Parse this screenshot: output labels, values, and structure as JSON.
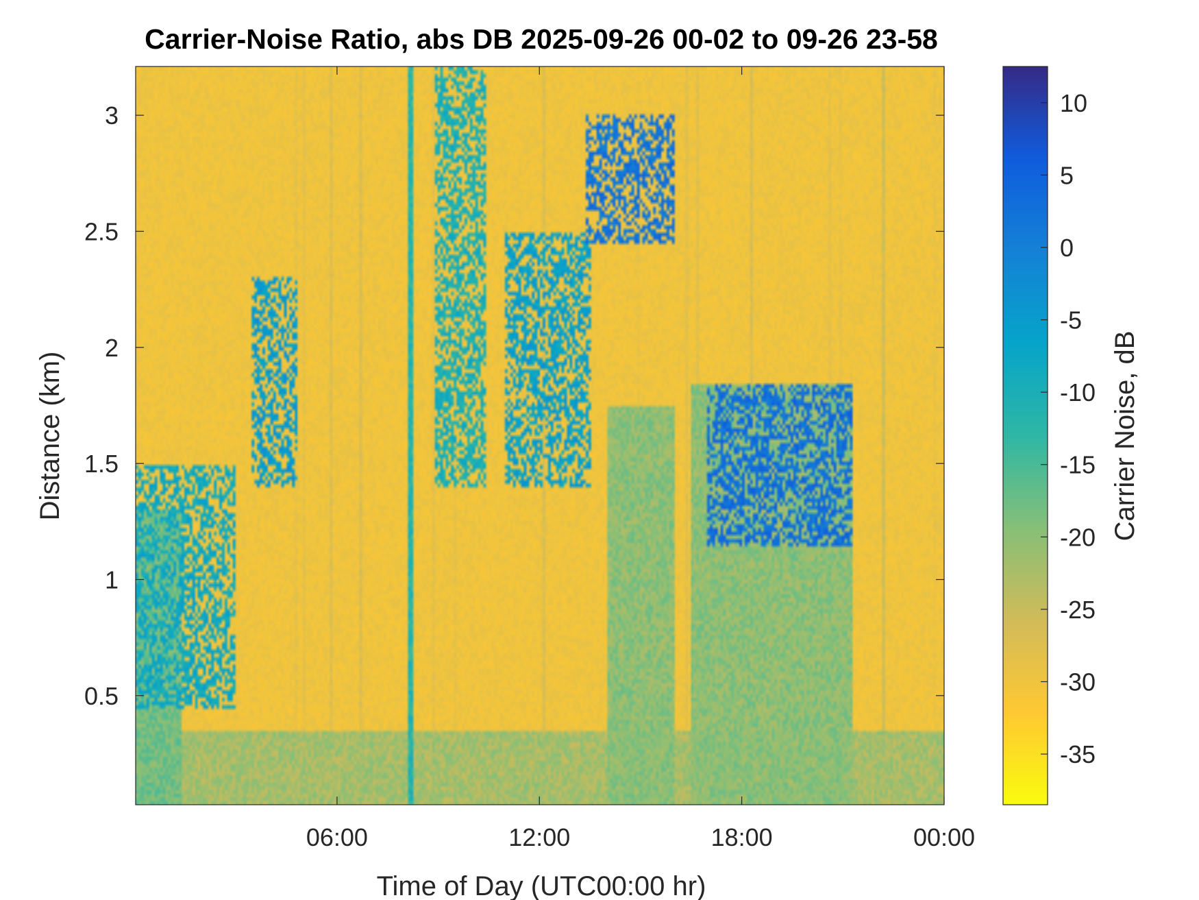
{
  "chart_data": {
    "type": "heatmap",
    "title": "Carrier-Noise Ratio, abs DB 2025-09-26 00-02 to 09-26 23-58",
    "xlabel": "Time of Day (UTC00:00 hr)",
    "ylabel": "Distance (km)",
    "colorbar_label": "Carrier Noise, dB",
    "x_unit": "hours UTC",
    "xlim": [
      0.03,
      24.0
    ],
    "ylim": [
      0.03,
      3.21
    ],
    "clim": [
      -38.5,
      12.5
    ],
    "x_ticks": [
      {
        "value": 6,
        "label": "06:00"
      },
      {
        "value": 12,
        "label": "12:00"
      },
      {
        "value": 18,
        "label": "18:00"
      },
      {
        "value": 24,
        "label": "00:00"
      }
    ],
    "y_ticks": [
      {
        "value": 0.5,
        "label": "0.5"
      },
      {
        "value": 1,
        "label": "1"
      },
      {
        "value": 1.5,
        "label": "1.5"
      },
      {
        "value": 2,
        "label": "2"
      },
      {
        "value": 2.5,
        "label": "2.5"
      },
      {
        "value": 3,
        "label": "3"
      }
    ],
    "colorbar_ticks": [
      {
        "value": 10,
        "label": "10"
      },
      {
        "value": 5,
        "label": "5"
      },
      {
        "value": 0,
        "label": "0"
      },
      {
        "value": -5,
        "label": "-5"
      },
      {
        "value": -10,
        "label": "-10"
      },
      {
        "value": -15,
        "label": "-15"
      },
      {
        "value": -20,
        "label": "-20"
      },
      {
        "value": -25,
        "label": "-25"
      },
      {
        "value": -30,
        "label": "-30"
      },
      {
        "value": -35,
        "label": "-35"
      }
    ],
    "colormap": [
      "#352a87",
      "#0f5cdd",
      "#1481d6",
      "#06a4ca",
      "#2eb7a4",
      "#87bf77",
      "#d1bb59",
      "#fec832",
      "#f9fb0e"
    ],
    "background_db": -30,
    "features": [
      {
        "name": "boundary layer near surface",
        "t": [
          0.03,
          24.0
        ],
        "d": [
          0.03,
          0.35
        ],
        "db": -22
      },
      {
        "name": "early low-level plume",
        "t": [
          0.03,
          1.4
        ],
        "d": [
          0.03,
          1.3
        ],
        "db": -18
      },
      {
        "name": "night cloud pockets",
        "t": [
          0.03,
          3.0
        ],
        "d": [
          0.45,
          1.5
        ],
        "db": -8
      },
      {
        "name": "scattered returns 03-05h",
        "t": [
          3.5,
          4.8
        ],
        "d": [
          1.4,
          2.3
        ],
        "db": -5
      },
      {
        "name": "vertical streak ~08h",
        "t": [
          8.1,
          8.25
        ],
        "d": [
          0.03,
          3.21
        ],
        "db": -12
      },
      {
        "name": "slanted band 09-10h",
        "t": [
          8.9,
          10.4
        ],
        "d": [
          1.4,
          3.21
        ],
        "db": -10
      },
      {
        "name": "cloud patch ~12h",
        "t": [
          11.0,
          13.5
        ],
        "d": [
          1.4,
          2.5
        ],
        "db": -6
      },
      {
        "name": "cloud aloft 14-16h",
        "t": [
          13.4,
          16.0
        ],
        "d": [
          2.45,
          3.0
        ],
        "db": 2
      },
      {
        "name": "afternoon mixed layer",
        "t": [
          14.0,
          16.0
        ],
        "d": [
          0.03,
          1.75
        ],
        "db": -20
      },
      {
        "name": "evening rising layer",
        "t": [
          16.5,
          21.3
        ],
        "d": [
          0.03,
          1.85
        ],
        "db": -20
      },
      {
        "name": "evening cloud edge",
        "t": [
          17.0,
          21.3
        ],
        "d": [
          1.15,
          1.85
        ],
        "db": 3
      }
    ]
  }
}
